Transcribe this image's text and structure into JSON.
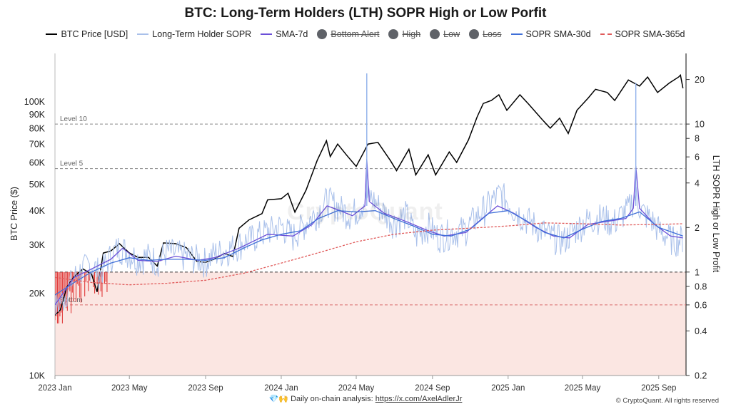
{
  "title": "BTC: Long-Term Holders (LTH) SOPR High or Low Porfit",
  "legend": [
    {
      "label": "BTC Price [USD]",
      "kind": "line",
      "color": "#000000",
      "off": false
    },
    {
      "label": "Long-Term Holder SOPR",
      "kind": "line",
      "color": "#a9c0ea",
      "off": false
    },
    {
      "label": "SMA-7d",
      "kind": "line",
      "color": "#6b4fd8",
      "off": false
    },
    {
      "label": "Bottom Alert",
      "kind": "dot",
      "color": "#5f6268",
      "off": true
    },
    {
      "label": "High",
      "kind": "dot",
      "color": "#5f6268",
      "off": true
    },
    {
      "label": "Low",
      "kind": "dot",
      "color": "#5f6268",
      "off": true
    },
    {
      "label": "Loss",
      "kind": "dot",
      "color": "#5f6268",
      "off": true
    },
    {
      "label": "SOPR SMA-30d",
      "kind": "line",
      "color": "#3f6fd8",
      "off": false
    },
    {
      "label": "SOPR SMA-365d",
      "kind": "dash",
      "color": "#e05a5a",
      "off": false
    }
  ],
  "watermark": "CryptoQuant",
  "footer": {
    "emoji": "💎🙌",
    "text": "Daily on-chain analysis:",
    "link": "https://x.com/AxelAdlerJr"
  },
  "copyright": "© CryptoQuant. All rights reserved",
  "chart_data": {
    "type": "line",
    "ylabel_left": "BTC Price ($)",
    "ylabel_right": "LTH SOPR High or Low Profit",
    "x_ticks": [
      "2023 Jan",
      "2023 May",
      "2023 Sep",
      "2024 Jan",
      "2024 May",
      "2024 Sep",
      "2025 Jan",
      "2025 May",
      "2025 Sep"
    ],
    "x_range": [
      "2023-01-01",
      "2025-10-15"
    ],
    "y_left": {
      "scale": "log",
      "range": [
        10000,
        150000
      ],
      "ticks": [
        {
          "v": 10000,
          "label": "10K"
        },
        {
          "v": 20000,
          "label": "20K"
        },
        {
          "v": 30000,
          "label": "30K"
        },
        {
          "v": 40000,
          "label": "40K"
        },
        {
          "v": 50000,
          "label": "50K"
        },
        {
          "v": 60000,
          "label": "60K"
        },
        {
          "v": 70000,
          "label": "70K"
        },
        {
          "v": 80000,
          "label": "80K"
        },
        {
          "v": 90000,
          "label": "90K"
        },
        {
          "v": 100000,
          "label": "100K"
        }
      ]
    },
    "y_right": {
      "scale": "log",
      "range": [
        0.2,
        30
      ],
      "ticks": [
        {
          "v": 0.2,
          "label": "0.2"
        },
        {
          "v": 0.4,
          "label": "0.4"
        },
        {
          "v": 0.6,
          "label": "0.6"
        },
        {
          "v": 0.8,
          "label": "0.8"
        },
        {
          "v": 1,
          "label": "1"
        },
        {
          "v": 2,
          "label": "2"
        },
        {
          "v": 4,
          "label": "4"
        },
        {
          "v": 6,
          "label": "6"
        },
        {
          "v": 8,
          "label": "8"
        },
        {
          "v": 10,
          "label": "10"
        },
        {
          "v": 20,
          "label": "20"
        }
      ]
    },
    "ref_lines": [
      {
        "label": "Level 10",
        "value": 10
      },
      {
        "label": "Level 5",
        "value": 5
      },
      {
        "label": "",
        "value": 1
      },
      {
        "label": "Bottom",
        "value": 0.6
      }
    ],
    "loss_zone_below": 1,
    "series": [
      {
        "name": "BTC Price [USD]",
        "axis": "left",
        "color": "#000000",
        "points": [
          [
            "2023-01-01",
            16600
          ],
          [
            "2023-01-10",
            17400
          ],
          [
            "2023-01-20",
            21000
          ],
          [
            "2023-02-01",
            23000
          ],
          [
            "2023-02-15",
            24500
          ],
          [
            "2023-03-01",
            23500
          ],
          [
            "2023-03-10",
            20200
          ],
          [
            "2023-03-20",
            28000
          ],
          [
            "2023-04-01",
            28500
          ],
          [
            "2023-04-15",
            30300
          ],
          [
            "2023-05-01",
            28000
          ],
          [
            "2023-05-15",
            27000
          ],
          [
            "2023-06-01",
            27000
          ],
          [
            "2023-06-15",
            25100
          ],
          [
            "2023-06-25",
            30500
          ],
          [
            "2023-07-15",
            30300
          ],
          [
            "2023-08-01",
            29300
          ],
          [
            "2023-08-18",
            26100
          ],
          [
            "2023-09-01",
            25900
          ],
          [
            "2023-09-15",
            26600
          ],
          [
            "2023-10-01",
            27900
          ],
          [
            "2023-10-15",
            27200
          ],
          [
            "2023-10-25",
            34500
          ],
          [
            "2023-11-10",
            37000
          ],
          [
            "2023-12-01",
            39000
          ],
          [
            "2023-12-10",
            43800
          ],
          [
            "2024-01-01",
            44200
          ],
          [
            "2024-01-12",
            46300
          ],
          [
            "2024-01-23",
            39500
          ],
          [
            "2024-02-10",
            47500
          ],
          [
            "2024-02-28",
            61000
          ],
          [
            "2024-03-14",
            72000
          ],
          [
            "2024-03-20",
            63000
          ],
          [
            "2024-04-01",
            70000
          ],
          [
            "2024-04-15",
            64000
          ],
          [
            "2024-05-01",
            58000
          ],
          [
            "2024-05-20",
            70000
          ],
          [
            "2024-06-05",
            71000
          ],
          [
            "2024-06-25",
            61000
          ],
          [
            "2024-07-05",
            56000
          ],
          [
            "2024-07-25",
            67000
          ],
          [
            "2024-08-05",
            54000
          ],
          [
            "2024-08-25",
            64000
          ],
          [
            "2024-09-06",
            54000
          ],
          [
            "2024-09-28",
            65500
          ],
          [
            "2024-10-10",
            60000
          ],
          [
            "2024-10-29",
            72500
          ],
          [
            "2024-11-12",
            88000
          ],
          [
            "2024-11-22",
            98500
          ],
          [
            "2024-12-05",
            101000
          ],
          [
            "2024-12-17",
            106000
          ],
          [
            "2024-12-30",
            93000
          ],
          [
            "2025-01-20",
            106000
          ],
          [
            "2025-02-03",
            98000
          ],
          [
            "2025-02-25",
            86000
          ],
          [
            "2025-03-10",
            80000
          ],
          [
            "2025-03-25",
            87000
          ],
          [
            "2025-04-08",
            76500
          ],
          [
            "2025-04-22",
            93000
          ],
          [
            "2025-05-10",
            103000
          ],
          [
            "2025-05-22",
            111000
          ],
          [
            "2025-06-10",
            108000
          ],
          [
            "2025-06-22",
            101000
          ],
          [
            "2025-07-14",
            120000
          ],
          [
            "2025-08-01",
            114000
          ],
          [
            "2025-08-14",
            123000
          ],
          [
            "2025-08-30",
            108000
          ],
          [
            "2025-09-18",
            117000
          ],
          [
            "2025-10-03",
            123000
          ],
          [
            "2025-10-06",
            125000
          ],
          [
            "2025-10-10",
            112000
          ]
        ]
      },
      {
        "name": "Long-Term Holder SOPR",
        "axis": "right",
        "color": "#a9c0ea",
        "points": [
          [
            "2023-01-01",
            0.56
          ],
          [
            "2023-01-15",
            0.65
          ],
          [
            "2023-02-01",
            0.9
          ],
          [
            "2023-02-15",
            1.02
          ],
          [
            "2023-03-01",
            1.1
          ],
          [
            "2023-03-15",
            0.95
          ],
          [
            "2023-04-01",
            1.25
          ],
          [
            "2023-04-15",
            1.45
          ],
          [
            "2023-05-01",
            1.3
          ],
          [
            "2023-05-15",
            1.2
          ],
          [
            "2023-06-01",
            1.25
          ],
          [
            "2023-06-15",
            1.15
          ],
          [
            "2023-07-01",
            1.35
          ],
          [
            "2023-07-15",
            1.3
          ],
          [
            "2023-08-01",
            1.25
          ],
          [
            "2023-08-20",
            1.2
          ],
          [
            "2023-09-01",
            1.15
          ],
          [
            "2023-09-15",
            1.3
          ],
          [
            "2023-10-01",
            1.35
          ],
          [
            "2023-10-25",
            1.5
          ],
          [
            "2023-11-15",
            1.65
          ],
          [
            "2023-12-10",
            1.85
          ],
          [
            "2024-01-01",
            2.0
          ],
          [
            "2024-01-20",
            1.7
          ],
          [
            "2024-02-10",
            2.1
          ],
          [
            "2024-03-01",
            2.5
          ],
          [
            "2024-03-15",
            3.0
          ],
          [
            "2024-04-01",
            2.7
          ],
          [
            "2024-04-20",
            2.4
          ],
          [
            "2024-05-05",
            2.6
          ],
          [
            "2024-05-22",
            3.2
          ],
          [
            "2024-06-10",
            2.6
          ],
          [
            "2024-07-01",
            2.1
          ],
          [
            "2024-07-20",
            2.4
          ],
          [
            "2024-08-05",
            1.7
          ],
          [
            "2024-08-25",
            2.0
          ],
          [
            "2024-09-10",
            1.7
          ],
          [
            "2024-10-01",
            1.8
          ],
          [
            "2024-10-25",
            1.9
          ],
          [
            "2024-11-15",
            2.4
          ],
          [
            "2024-12-05",
            2.9
          ],
          [
            "2024-12-20",
            3.3
          ],
          [
            "2025-01-10",
            2.6
          ],
          [
            "2025-01-25",
            2.3
          ],
          [
            "2025-02-15",
            2.0
          ],
          [
            "2025-03-10",
            1.7
          ],
          [
            "2025-04-01",
            1.6
          ],
          [
            "2025-04-20",
            1.9
          ],
          [
            "2025-05-10",
            2.2
          ],
          [
            "2025-06-01",
            2.3
          ],
          [
            "2025-06-20",
            2.1
          ],
          [
            "2025-07-14",
            2.6
          ],
          [
            "2025-07-25",
            3.2
          ],
          [
            "2025-08-05",
            2.5
          ],
          [
            "2025-08-20",
            2.2
          ],
          [
            "2025-09-05",
            1.8
          ],
          [
            "2025-09-25",
            1.6
          ],
          [
            "2025-10-10",
            1.65
          ]
        ]
      },
      {
        "name": "SMA-7d",
        "axis": "right",
        "color": "#6b4fd8",
        "points": [
          [
            "2023-01-01",
            0.6
          ],
          [
            "2023-02-01",
            0.92
          ],
          [
            "2023-03-01",
            1.05
          ],
          [
            "2023-04-01",
            1.22
          ],
          [
            "2023-04-20",
            1.45
          ],
          [
            "2023-05-15",
            1.2
          ],
          [
            "2023-06-15",
            1.18
          ],
          [
            "2023-07-15",
            1.28
          ],
          [
            "2023-08-20",
            1.2
          ],
          [
            "2023-09-15",
            1.25
          ],
          [
            "2023-10-25",
            1.45
          ],
          [
            "2023-11-15",
            1.6
          ],
          [
            "2023-12-10",
            1.8
          ],
          [
            "2024-01-20",
            1.75
          ],
          [
            "2024-02-20",
            2.1
          ],
          [
            "2024-03-15",
            2.8
          ],
          [
            "2024-04-05",
            2.6
          ],
          [
            "2024-04-25",
            2.4
          ],
          [
            "2024-05-15",
            2.8
          ],
          [
            "2024-05-18",
            5.8
          ],
          [
            "2024-05-22",
            3.0
          ],
          [
            "2024-06-15",
            2.5
          ],
          [
            "2024-07-20",
            2.2
          ],
          [
            "2024-08-25",
            1.9
          ],
          [
            "2024-09-20",
            1.75
          ],
          [
            "2024-10-25",
            1.85
          ],
          [
            "2024-11-20",
            2.3
          ],
          [
            "2024-12-15",
            2.8
          ],
          [
            "2025-01-10",
            2.5
          ],
          [
            "2025-02-15",
            2.0
          ],
          [
            "2025-03-15",
            1.75
          ],
          [
            "2025-04-10",
            1.7
          ],
          [
            "2025-05-10",
            2.1
          ],
          [
            "2025-06-10",
            2.2
          ],
          [
            "2025-07-10",
            2.3
          ],
          [
            "2025-07-22",
            2.7
          ],
          [
            "2025-07-26",
            5.2
          ],
          [
            "2025-08-01",
            2.7
          ],
          [
            "2025-08-25",
            2.1
          ],
          [
            "2025-09-20",
            1.75
          ],
          [
            "2025-10-10",
            1.7
          ]
        ]
      },
      {
        "name": "SOPR SMA-30d",
        "axis": "right",
        "color": "#3f6fd8",
        "points": [
          [
            "2023-01-01",
            0.7
          ],
          [
            "2023-02-01",
            0.85
          ],
          [
            "2023-03-01",
            1.0
          ],
          [
            "2023-04-01",
            1.15
          ],
          [
            "2023-05-01",
            1.25
          ],
          [
            "2023-06-01",
            1.2
          ],
          [
            "2023-07-01",
            1.22
          ],
          [
            "2023-08-01",
            1.22
          ],
          [
            "2023-09-01",
            1.2
          ],
          [
            "2023-10-01",
            1.25
          ],
          [
            "2023-11-01",
            1.45
          ],
          [
            "2023-12-01",
            1.65
          ],
          [
            "2024-01-01",
            1.8
          ],
          [
            "2024-02-01",
            1.9
          ],
          [
            "2024-03-01",
            2.3
          ],
          [
            "2024-04-01",
            2.6
          ],
          [
            "2024-05-01",
            2.55
          ],
          [
            "2024-06-01",
            2.6
          ],
          [
            "2024-07-01",
            2.3
          ],
          [
            "2024-08-01",
            2.05
          ],
          [
            "2024-09-01",
            1.8
          ],
          [
            "2024-10-01",
            1.75
          ],
          [
            "2024-11-01",
            1.95
          ],
          [
            "2024-12-01",
            2.5
          ],
          [
            "2025-01-01",
            2.6
          ],
          [
            "2025-02-01",
            2.2
          ],
          [
            "2025-03-01",
            1.85
          ],
          [
            "2025-04-01",
            1.7
          ],
          [
            "2025-05-01",
            1.95
          ],
          [
            "2025-06-01",
            2.2
          ],
          [
            "2025-07-01",
            2.3
          ],
          [
            "2025-08-01",
            2.55
          ],
          [
            "2025-09-01",
            2.0
          ],
          [
            "2025-10-10",
            1.75
          ]
        ]
      },
      {
        "name": "SOPR SMA-365d",
        "axis": "right",
        "color": "#e05a5a",
        "dashed": true,
        "points": [
          [
            "2023-01-01",
            0.92
          ],
          [
            "2023-03-01",
            0.85
          ],
          [
            "2023-05-01",
            0.82
          ],
          [
            "2023-07-01",
            0.84
          ],
          [
            "2023-09-01",
            0.88
          ],
          [
            "2023-11-01",
            0.98
          ],
          [
            "2024-01-01",
            1.15
          ],
          [
            "2024-03-01",
            1.35
          ],
          [
            "2024-05-01",
            1.6
          ],
          [
            "2024-07-01",
            1.8
          ],
          [
            "2024-09-01",
            1.92
          ],
          [
            "2024-11-01",
            1.98
          ],
          [
            "2025-01-01",
            2.05
          ],
          [
            "2025-03-01",
            2.15
          ],
          [
            "2025-05-01",
            2.12
          ],
          [
            "2025-07-01",
            2.08
          ],
          [
            "2025-09-01",
            2.1
          ],
          [
            "2025-10-10",
            2.12
          ]
        ]
      }
    ],
    "spikes": [
      {
        "x": "2024-05-18",
        "y": 22
      },
      {
        "x": "2025-07-26",
        "y": 19
      }
    ]
  }
}
